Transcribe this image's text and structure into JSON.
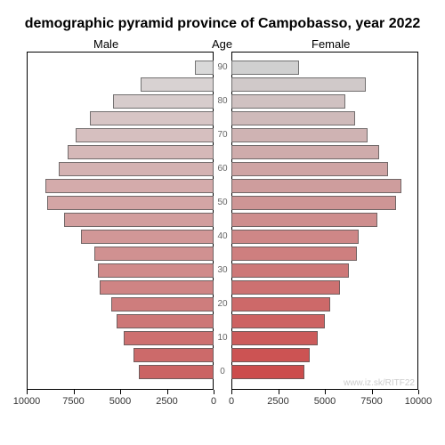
{
  "title": "demographic pyramid province of Campobasso, year 2022",
  "labels": {
    "male": "Male",
    "age": "Age",
    "female": "Female"
  },
  "watermark": "www.iz.sk/RITF22",
  "chart": {
    "type": "population-pyramid",
    "xmax": 10000,
    "xticks": [
      10000,
      7500,
      5000,
      2500,
      0
    ],
    "xticks_right": [
      0,
      2500,
      5000,
      7500,
      10000
    ],
    "age_labels_every": 10,
    "panel_border_color": "#000000",
    "background_color": "#ffffff",
    "bar_border_color": "#808080",
    "male_color_top": "#d9d9d9",
    "male_color_bottom": "#cb6363",
    "female_color_top": "#d0d0d0",
    "female_color_bottom": "#cc4c4c",
    "bars": [
      {
        "age": "90",
        "male": 1000,
        "female": 3600
      },
      {
        "age": "85",
        "male": 3900,
        "female": 7200
      },
      {
        "age": "80",
        "male": 5400,
        "female": 6100
      },
      {
        "age": "75",
        "male": 6600,
        "female": 6600
      },
      {
        "age": "70",
        "male": 7400,
        "female": 7300
      },
      {
        "age": "65",
        "male": 7800,
        "female": 7900
      },
      {
        "age": "60",
        "male": 8300,
        "female": 8400
      },
      {
        "age": "55",
        "male": 9000,
        "female": 9100
      },
      {
        "age": "50",
        "male": 8900,
        "female": 8800
      },
      {
        "age": "45",
        "male": 8000,
        "female": 7800
      },
      {
        "age": "40",
        "male": 7100,
        "female": 6800
      },
      {
        "age": "35",
        "male": 6400,
        "female": 6700
      },
      {
        "age": "30",
        "male": 6200,
        "female": 6300
      },
      {
        "age": "25",
        "male": 6100,
        "female": 5800
      },
      {
        "age": "20",
        "male": 5500,
        "female": 5300
      },
      {
        "age": "15",
        "male": 5200,
        "female": 5000
      },
      {
        "age": "10",
        "male": 4800,
        "female": 4600
      },
      {
        "age": "5",
        "male": 4300,
        "female": 4200
      },
      {
        "age": "0",
        "male": 4000,
        "female": 3900
      }
    ],
    "title_fontsize": 16,
    "label_fontsize": 13,
    "tick_fontsize": 11
  }
}
